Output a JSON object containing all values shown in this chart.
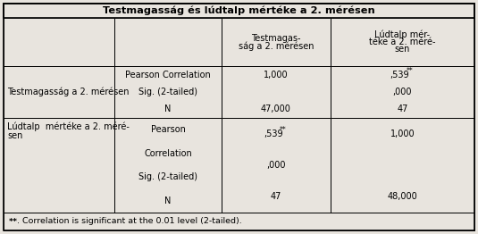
{
  "title": "Testmagasság és lúdtalp mértéke a 2. mérésen",
  "col3_header_line1": "Testmagas-",
  "col3_header_line2": "ság a 2. mérésen",
  "col4_header_line1": "Lúdtalp mér-",
  "col4_header_line2": "téke a 2. méré-",
  "col4_header_line3": "sen",
  "row1_col1": "Testmagasság a 2. mérésen",
  "row1_col2_lines": [
    "Pearson Correlation",
    "Sig. (2-tailed)",
    "N"
  ],
  "row1_col3_lines": [
    "1,000",
    "",
    "47,000"
  ],
  "row1_col4_base": [
    ",539",
    ",000",
    "47"
  ],
  "row1_col4_sup": [
    "**",
    "",
    ""
  ],
  "row2_col1_line1": "Lúdtalp  mértéke a 2. méré-",
  "row2_col1_line2": "sen",
  "row2_col2_lines": [
    "Pearson",
    "Correlation",
    "Sig. (2-tailed)",
    "N"
  ],
  "row2_col3_base": [
    ",539",
    ",000",
    "47"
  ],
  "row2_col3_sup": [
    "**",
    "",
    ""
  ],
  "row2_col4_lines": [
    "1,000",
    "",
    "48,000"
  ],
  "footnote_bold": "**",
  "footnote_rest": ". Correlation is significant at the 0.01 level (2-tailed).",
  "bg_color": "#e8e4de",
  "border_color": "#000000",
  "font_size": 7.0,
  "title_font_size": 8.2,
  "footnote_font_size": 6.8
}
